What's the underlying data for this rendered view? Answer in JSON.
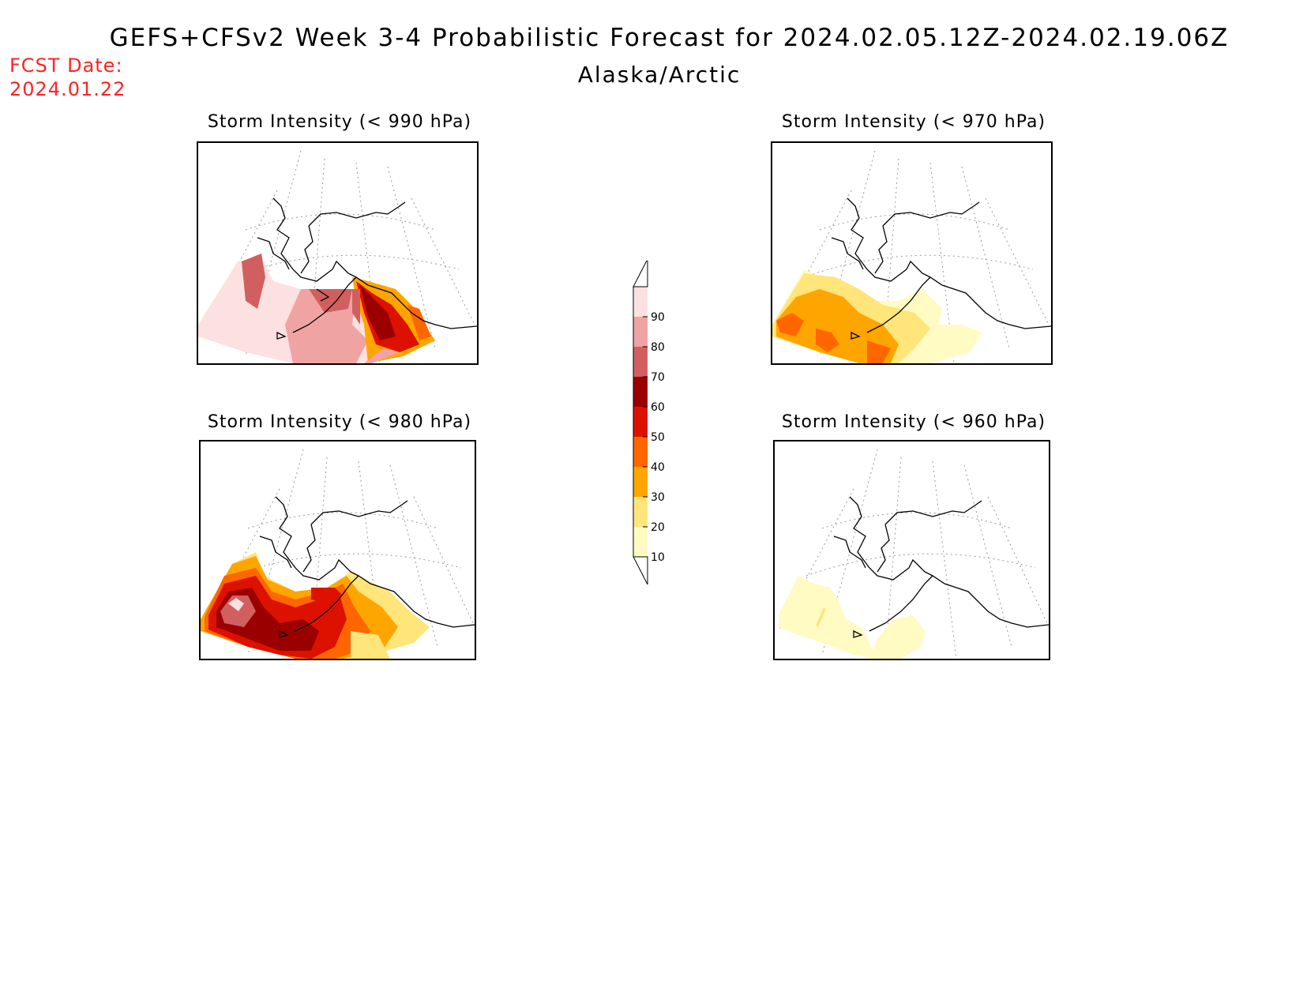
{
  "header": {
    "title": "GEFS+CFSv2 Week 3-4 Probabilistic Forecast for 2024.02.05.12Z-2024.02.19.06Z",
    "region": "Alaska/Arctic",
    "fcst_label": "FCST Date:",
    "fcst_date": "2024.01.22"
  },
  "panels": [
    {
      "id": "p990",
      "title": "Storm Intensity (< 990 hPa)"
    },
    {
      "id": "p970",
      "title": "Storm Intensity (< 970 hPa)"
    },
    {
      "id": "p980",
      "title": "Storm Intensity (< 980 hPa)"
    },
    {
      "id": "p960",
      "title": "Storm Intensity (< 960 hPa)"
    }
  ],
  "legend": {
    "levels": [
      "10",
      "20",
      "30",
      "40",
      "50",
      "60",
      "70",
      "80",
      "90"
    ],
    "colors": [
      "#fffbc2",
      "#ffe57a",
      "#ffa500",
      "#ff6600",
      "#dd1100",
      "#9b0000",
      "#d25f5f",
      "#f0a3a3",
      "#fde0e0"
    ]
  }
}
